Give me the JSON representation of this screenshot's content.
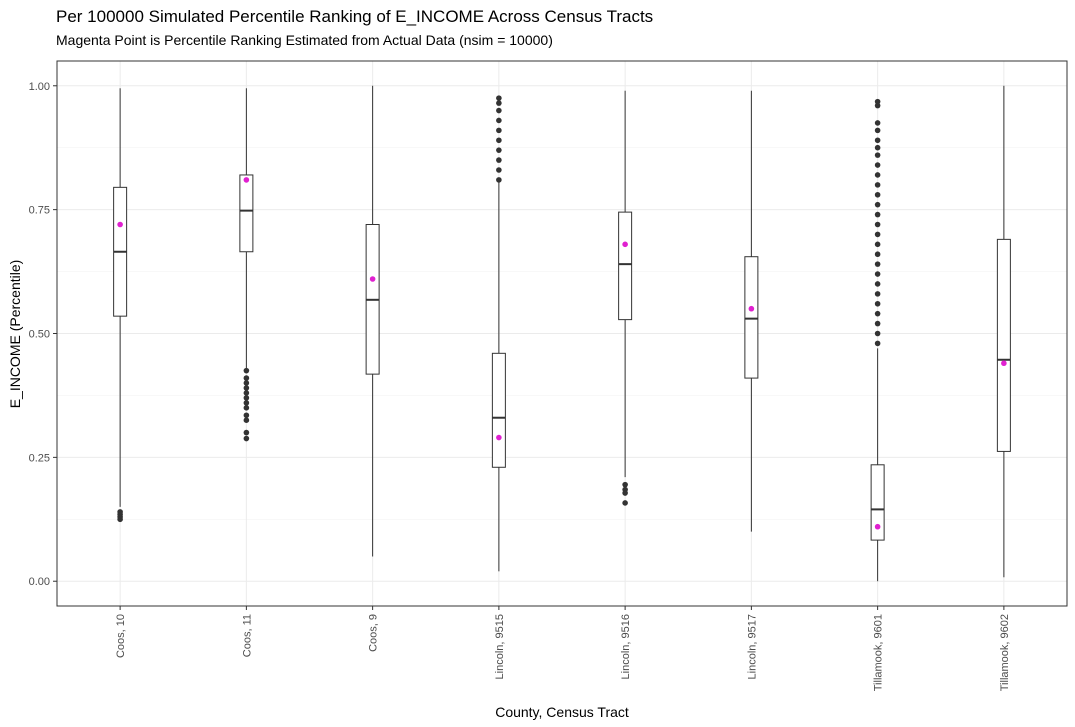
{
  "chart_data": {
    "type": "boxplot",
    "title": "Per 100000 Simulated Percentile Ranking of E_INCOME Across Census Tracts",
    "subtitle": "Magenta Point is Percentile Ranking Estimated from Actual Data (nsim = 10000)",
    "xlabel": "County, Census Tract",
    "ylabel": "E_INCOME (Percentile)",
    "ylim": [
      -0.05,
      1.05
    ],
    "yticks": [
      0.0,
      0.25,
      0.5,
      0.75,
      1.0
    ],
    "ytick_labels": [
      "0.00",
      "0.25",
      "0.50",
      "0.75",
      "1.00"
    ],
    "grid": true,
    "point_color": "#e020d0",
    "categories": [
      "Coos, 10",
      "Coos, 11",
      "Coos, 9",
      "Lincoln, 9515",
      "Lincoln, 9516",
      "Lincoln, 9517",
      "Tillamook, 9601",
      "Tillamook, 9602"
    ],
    "boxes": [
      {
        "whisker_low": 0.15,
        "q1": 0.535,
        "median": 0.665,
        "q3": 0.795,
        "whisker_high": 0.995,
        "outliers": [
          0.14,
          0.135,
          0.13,
          0.125
        ],
        "actual": 0.72
      },
      {
        "whisker_low": 0.43,
        "q1": 0.665,
        "median": 0.748,
        "q3": 0.82,
        "whisker_high": 0.995,
        "outliers": [
          0.425,
          0.41,
          0.4,
          0.39,
          0.38,
          0.37,
          0.36,
          0.35,
          0.335,
          0.325,
          0.3,
          0.288
        ],
        "actual": 0.81
      },
      {
        "whisker_low": 0.05,
        "q1": 0.418,
        "median": 0.568,
        "q3": 0.72,
        "whisker_high": 1.0,
        "outliers": [],
        "actual": 0.61
      },
      {
        "whisker_low": 0.02,
        "q1": 0.23,
        "median": 0.33,
        "q3": 0.46,
        "whisker_high": 0.805,
        "outliers": [
          0.81,
          0.83,
          0.85,
          0.87,
          0.89,
          0.91,
          0.93,
          0.95,
          0.965,
          0.975
        ],
        "actual": 0.29
      },
      {
        "whisker_low": 0.21,
        "q1": 0.528,
        "median": 0.64,
        "q3": 0.745,
        "whisker_high": 0.99,
        "outliers": [
          0.195,
          0.185,
          0.178,
          0.158
        ],
        "actual": 0.68
      },
      {
        "whisker_low": 0.1,
        "q1": 0.41,
        "median": 0.53,
        "q3": 0.655,
        "whisker_high": 0.99,
        "outliers": [],
        "actual": 0.55
      },
      {
        "whisker_low": 0.0,
        "q1": 0.083,
        "median": 0.145,
        "q3": 0.235,
        "whisker_high": 0.47,
        "outliers": [
          0.48,
          0.5,
          0.52,
          0.54,
          0.56,
          0.58,
          0.6,
          0.62,
          0.64,
          0.66,
          0.68,
          0.7,
          0.72,
          0.74,
          0.76,
          0.78,
          0.8,
          0.82,
          0.84,
          0.86,
          0.875,
          0.89,
          0.91,
          0.925,
          0.96,
          0.968
        ],
        "actual": 0.11
      },
      {
        "whisker_low": 0.008,
        "q1": 0.262,
        "median": 0.447,
        "q3": 0.69,
        "whisker_high": 1.0,
        "outliers": [],
        "actual": 0.44
      }
    ]
  }
}
